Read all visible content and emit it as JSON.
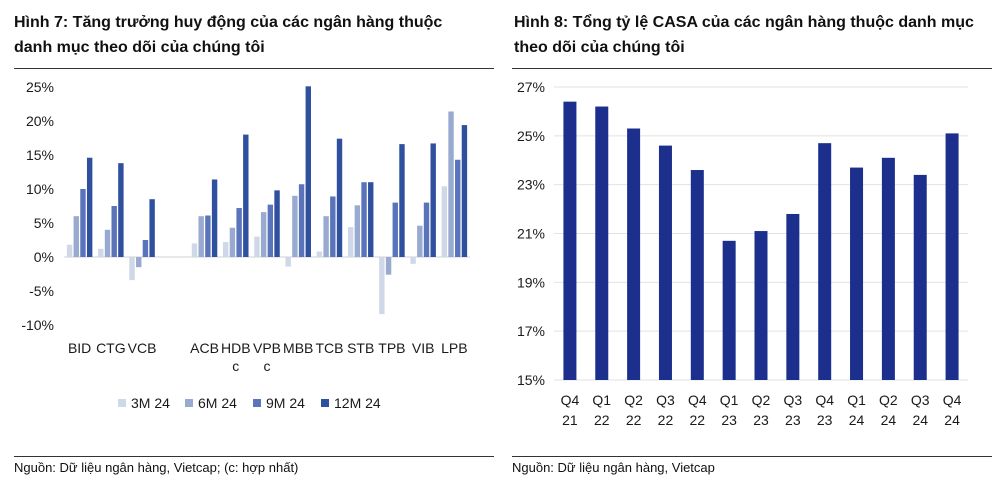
{
  "charts": [
    {
      "id": "deposit-growth",
      "heading": "Hình 7: Tăng trưởng huy động của các ngân hàng thuộc danh mục theo dõi của chúng tôi",
      "source": "Nguồn: Dữ liệu ngân hàng, Vietcap; (c: hợp nhất)"
    },
    {
      "id": "casa-ratio",
      "heading": "Hình 8: Tổng tỷ lệ CASA của các ngân hàng thuộc danh mục theo dõi của chúng tôi",
      "source": "Nguồn: Dữ liệu ngân hàng, Vietcap"
    }
  ],
  "chart_data": [
    {
      "type": "bar",
      "title": "Hình 7: Tăng trưởng huy động của các ngân hàng thuộc danh mục theo dõi của chúng tôi",
      "categories": [
        "BID",
        "CTG",
        "VCB",
        "",
        "ACB",
        "HDB c",
        "VPB c",
        "MBB",
        "TCB",
        "STB",
        "TPB",
        "VIB",
        "LPB"
      ],
      "category_lines": [
        [
          "BID"
        ],
        [
          "CTG"
        ],
        [
          "VCB"
        ],
        [
          ""
        ],
        [
          "ACB"
        ],
        [
          "HDB",
          "c"
        ],
        [
          "VPB",
          "c"
        ],
        [
          "MBB"
        ],
        [
          "TCB"
        ],
        [
          "STB"
        ],
        [
          "TPB"
        ],
        [
          "VIB"
        ],
        [
          "LPB"
        ]
      ],
      "series": [
        {
          "name": "3M 24",
          "color": "#cfd8e8",
          "values": [
            1.8,
            1.2,
            -3.4,
            null,
            2.0,
            2.2,
            3.0,
            -1.4,
            0.8,
            4.4,
            -8.4,
            -1.0,
            10.4
          ]
        },
        {
          "name": "6M 24",
          "color": "#98aad0",
          "values": [
            6.0,
            4.0,
            -1.5,
            null,
            6.0,
            4.3,
            6.6,
            9.0,
            6.0,
            7.6,
            -2.6,
            4.6,
            21.4
          ]
        },
        {
          "name": "9M 24",
          "color": "#5a74bb",
          "values": [
            10.0,
            7.5,
            2.5,
            null,
            6.1,
            7.2,
            7.7,
            10.7,
            8.9,
            11.0,
            8.0,
            8.0,
            14.3
          ]
        },
        {
          "name": "12M 24",
          "color": "#2f4f9f",
          "values": [
            14.6,
            13.8,
            8.5,
            null,
            11.4,
            18.0,
            9.8,
            25.1,
            17.4,
            11.0,
            16.6,
            16.7,
            19.4
          ]
        }
      ],
      "y_ticks": [
        "25%",
        "20%",
        "15%",
        "10%",
        "5%",
        "0%",
        "-5%",
        "-10%"
      ],
      "ylim": [
        -10,
        25
      ],
      "xlabel": "",
      "ylabel": "",
      "legend": "bottom",
      "grid": false
    },
    {
      "type": "bar",
      "title": "Hình 8: Tổng tỷ lệ CASA của các ngân hàng thuộc danh mục theo dõi của chúng tôi",
      "categories": [
        "Q4 21",
        "Q1 22",
        "Q2 22",
        "Q3 22",
        "Q4 22",
        "Q1 23",
        "Q2 23",
        "Q3 23",
        "Q4 23",
        "Q1 24",
        "Q2 24",
        "Q3 24",
        "Q4 24"
      ],
      "category_lines": [
        [
          "Q4",
          "21"
        ],
        [
          "Q1",
          "22"
        ],
        [
          "Q2",
          "22"
        ],
        [
          "Q3",
          "22"
        ],
        [
          "Q4",
          "22"
        ],
        [
          "Q1",
          "23"
        ],
        [
          "Q2",
          "23"
        ],
        [
          "Q3",
          "23"
        ],
        [
          "Q4",
          "23"
        ],
        [
          "Q1",
          "24"
        ],
        [
          "Q2",
          "24"
        ],
        [
          "Q3",
          "24"
        ],
        [
          "Q4",
          "24"
        ]
      ],
      "series": [
        {
          "name": "CASA",
          "color": "#1c2f8c",
          "values": [
            26.4,
            26.2,
            25.3,
            24.6,
            23.6,
            20.7,
            21.1,
            21.8,
            24.7,
            23.7,
            24.1,
            23.4,
            25.1
          ]
        }
      ],
      "y_ticks": [
        "27%",
        "25%",
        "23%",
        "21%",
        "19%",
        "17%",
        "15%"
      ],
      "ylim": [
        15,
        27
      ],
      "xlabel": "",
      "ylabel": "",
      "legend": "none",
      "grid": true
    }
  ]
}
